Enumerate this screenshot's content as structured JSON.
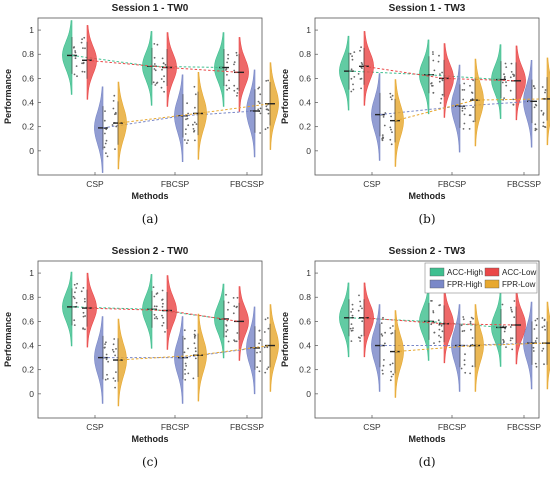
{
  "figure": {
    "panels": [
      {
        "id": "a",
        "title": "Session 1 - TW0",
        "caption": "(a)"
      },
      {
        "id": "b",
        "title": "Session 1 - TW3",
        "caption": "(b)"
      },
      {
        "id": "c",
        "title": "Session 2 - TW0",
        "caption": "(c)"
      },
      {
        "id": "d",
        "title": "Session 2 - TW3",
        "caption": "(d)"
      }
    ]
  },
  "legend": [
    "ACC-High",
    "ACC-Low",
    "FPR-High",
    "FPR-Low"
  ],
  "colors": {
    "ACC-High": "#3fbf8f",
    "ACC-Low": "#ea4848",
    "FPR-High": "#7a88c8",
    "FPR-Low": "#e7a830"
  },
  "chart_data": [
    {
      "type": "violin",
      "title": "Session 1 - TW0",
      "xlabel": "Methods",
      "ylabel": "Performance",
      "categories": [
        "CSP",
        "FBCSP",
        "FBCSSP"
      ],
      "ylim": [
        -0.2,
        1.1
      ],
      "yticks": [
        0,
        0.2,
        0.4,
        0.6,
        0.8,
        1
      ],
      "series": [
        {
          "name": "ACC-High",
          "medians": [
            0.79,
            0.7,
            0.69
          ]
        },
        {
          "name": "ACC-Low",
          "medians": [
            0.75,
            0.69,
            0.65
          ]
        },
        {
          "name": "FPR-High",
          "medians": [
            0.19,
            0.29,
            0.33
          ]
        },
        {
          "name": "FPR-Low",
          "medians": [
            0.23,
            0.31,
            0.39
          ]
        }
      ]
    },
    {
      "type": "violin",
      "title": "Session 1 - TW3",
      "xlabel": "Methods",
      "ylabel": "Performance",
      "categories": [
        "CSP",
        "FBCSP",
        "FBCSSP"
      ],
      "ylim": [
        -0.2,
        1.1
      ],
      "yticks": [
        0,
        0.2,
        0.4,
        0.6,
        0.8,
        1
      ],
      "series": [
        {
          "name": "ACC-High",
          "medians": [
            0.66,
            0.63,
            0.59
          ]
        },
        {
          "name": "ACC-Low",
          "medians": [
            0.7,
            0.6,
            0.58
          ]
        },
        {
          "name": "FPR-High",
          "medians": [
            0.3,
            0.37,
            0.41
          ]
        },
        {
          "name": "FPR-Low",
          "medians": [
            0.25,
            0.42,
            0.43
          ]
        }
      ]
    },
    {
      "type": "violin",
      "title": "Session 2 - TW0",
      "xlabel": "Methods",
      "ylabel": "Performance",
      "categories": [
        "CSP",
        "FBCSP",
        "FBCSSP"
      ],
      "ylim": [
        -0.2,
        1.1
      ],
      "yticks": [
        0,
        0.2,
        0.4,
        0.6,
        0.8,
        1
      ],
      "series": [
        {
          "name": "ACC-High",
          "medians": [
            0.72,
            0.7,
            0.62
          ]
        },
        {
          "name": "ACC-Low",
          "medians": [
            0.71,
            0.69,
            0.6
          ]
        },
        {
          "name": "FPR-High",
          "medians": [
            0.3,
            0.3,
            0.38
          ]
        },
        {
          "name": "FPR-Low",
          "medians": [
            0.28,
            0.32,
            0.4
          ]
        }
      ]
    },
    {
      "type": "violin",
      "title": "Session 2 - TW3",
      "xlabel": "Methods",
      "ylabel": "Performance",
      "categories": [
        "CSP",
        "FBCSP",
        "FBCSSP"
      ],
      "ylim": [
        -0.2,
        1.1
      ],
      "yticks": [
        0,
        0.2,
        0.4,
        0.6,
        0.8,
        1
      ],
      "legend_position": "top-right",
      "series": [
        {
          "name": "ACC-High",
          "medians": [
            0.63,
            0.6,
            0.55
          ]
        },
        {
          "name": "ACC-Low",
          "medians": [
            0.63,
            0.58,
            0.57
          ]
        },
        {
          "name": "FPR-High",
          "medians": [
            0.4,
            0.4,
            0.42
          ]
        },
        {
          "name": "FPR-Low",
          "medians": [
            0.35,
            0.4,
            0.42
          ]
        }
      ]
    }
  ]
}
